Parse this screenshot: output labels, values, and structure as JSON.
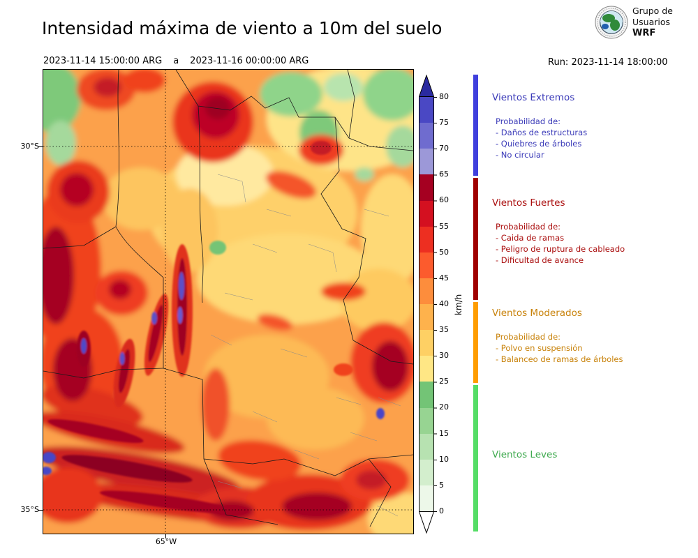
{
  "header": {
    "title": "Intensidad máxima de viento a 10m del suelo",
    "valid_from": "2023-11-14 15:00:00 ARG",
    "valid_sep": "a",
    "valid_to": "2023-11-16 00:00:00 ARG",
    "run_label": "Run: 2023-11-14 18:00:00",
    "logo": {
      "line1": "Grupo de",
      "line2": "Usuarios",
      "line3": "WRF"
    }
  },
  "map": {
    "lat_labels": [
      "30°S",
      "35°S"
    ],
    "lon_label": "65°W"
  },
  "colorbar": {
    "unit": "km/h",
    "ticks": [
      0,
      5,
      10,
      15,
      20,
      25,
      30,
      35,
      40,
      45,
      50,
      55,
      60,
      65,
      70,
      75,
      80
    ],
    "over_color": "#2a2aa0",
    "under_color": "#ffffff",
    "segments": [
      {
        "from": 0,
        "to": 5,
        "color": "#edf8e9"
      },
      {
        "from": 5,
        "to": 10,
        "color": "#d3eecd"
      },
      {
        "from": 10,
        "to": 15,
        "color": "#b7e2b1"
      },
      {
        "from": 15,
        "to": 20,
        "color": "#97d492"
      },
      {
        "from": 20,
        "to": 25,
        "color": "#73c476"
      },
      {
        "from": 25,
        "to": 30,
        "color": "#ffe785"
      },
      {
        "from": 30,
        "to": 35,
        "color": "#fed064"
      },
      {
        "from": 35,
        "to": 40,
        "color": "#feb24c"
      },
      {
        "from": 40,
        "to": 45,
        "color": "#fd8d3c"
      },
      {
        "from": 45,
        "to": 50,
        "color": "#fc5b2d"
      },
      {
        "from": 50,
        "to": 55,
        "color": "#ed2f21"
      },
      {
        "from": 55,
        "to": 60,
        "color": "#d41020"
      },
      {
        "from": 60,
        "to": 65,
        "color": "#a50021"
      },
      {
        "from": 65,
        "to": 70,
        "color": "#9c98d8"
      },
      {
        "from": 70,
        "to": 75,
        "color": "#6f6ccf"
      },
      {
        "from": 75,
        "to": 80,
        "color": "#4a48c4"
      }
    ]
  },
  "legend": {
    "sections": [
      {
        "title": "Vientos Extremos",
        "color": "#3a3ab8",
        "bar_color": "#4040dd",
        "intro": "Probabilidad de:",
        "items": [
          "- Daños de estructuras",
          "- Quiebres de árboles",
          "- No circular"
        ]
      },
      {
        "title": "Vientos Fuertes",
        "color": "#aa0e0e",
        "bar_color": "#a00000",
        "intro": "Probabilidad de:",
        "items": [
          "- Caida de ramas",
          "- Peligro de ruptura de cableado",
          "- Dificultad de avance"
        ]
      },
      {
        "title": "Vientos Moderados",
        "color": "#c8820a",
        "bar_color": "#ff9d00",
        "intro": "Probabilidad de:",
        "items": [
          "- Polvo en suspensión",
          "- Balanceo de ramas de árboles"
        ]
      },
      {
        "title": "Vientos Leves",
        "color": "#3faa4f",
        "bar_color": "#55dd66",
        "intro": "",
        "items": []
      }
    ]
  },
  "chart_data": {
    "type": "heatmap",
    "title": "Intensidad máxima de viento a 10m del suelo",
    "unit": "km/h",
    "colorbar_levels": [
      0,
      5,
      10,
      15,
      20,
      25,
      30,
      35,
      40,
      45,
      50,
      55,
      60,
      65,
      70,
      75,
      80
    ],
    "lat_ticks": [
      "30°S",
      "35°S"
    ],
    "lon_ticks": [
      "65°W"
    ],
    "legend_position": "right",
    "wind_categories": [
      {
        "label": "Vientos Leves",
        "range_kmh": [
          0,
          25
        ]
      },
      {
        "label": "Vientos Moderados",
        "range_kmh": [
          25,
          40
        ]
      },
      {
        "label": "Vientos Fuertes",
        "range_kmh": [
          40,
          65
        ]
      },
      {
        "label": "Vientos Extremos",
        "range_kmh": [
          65,
          80
        ]
      }
    ]
  }
}
